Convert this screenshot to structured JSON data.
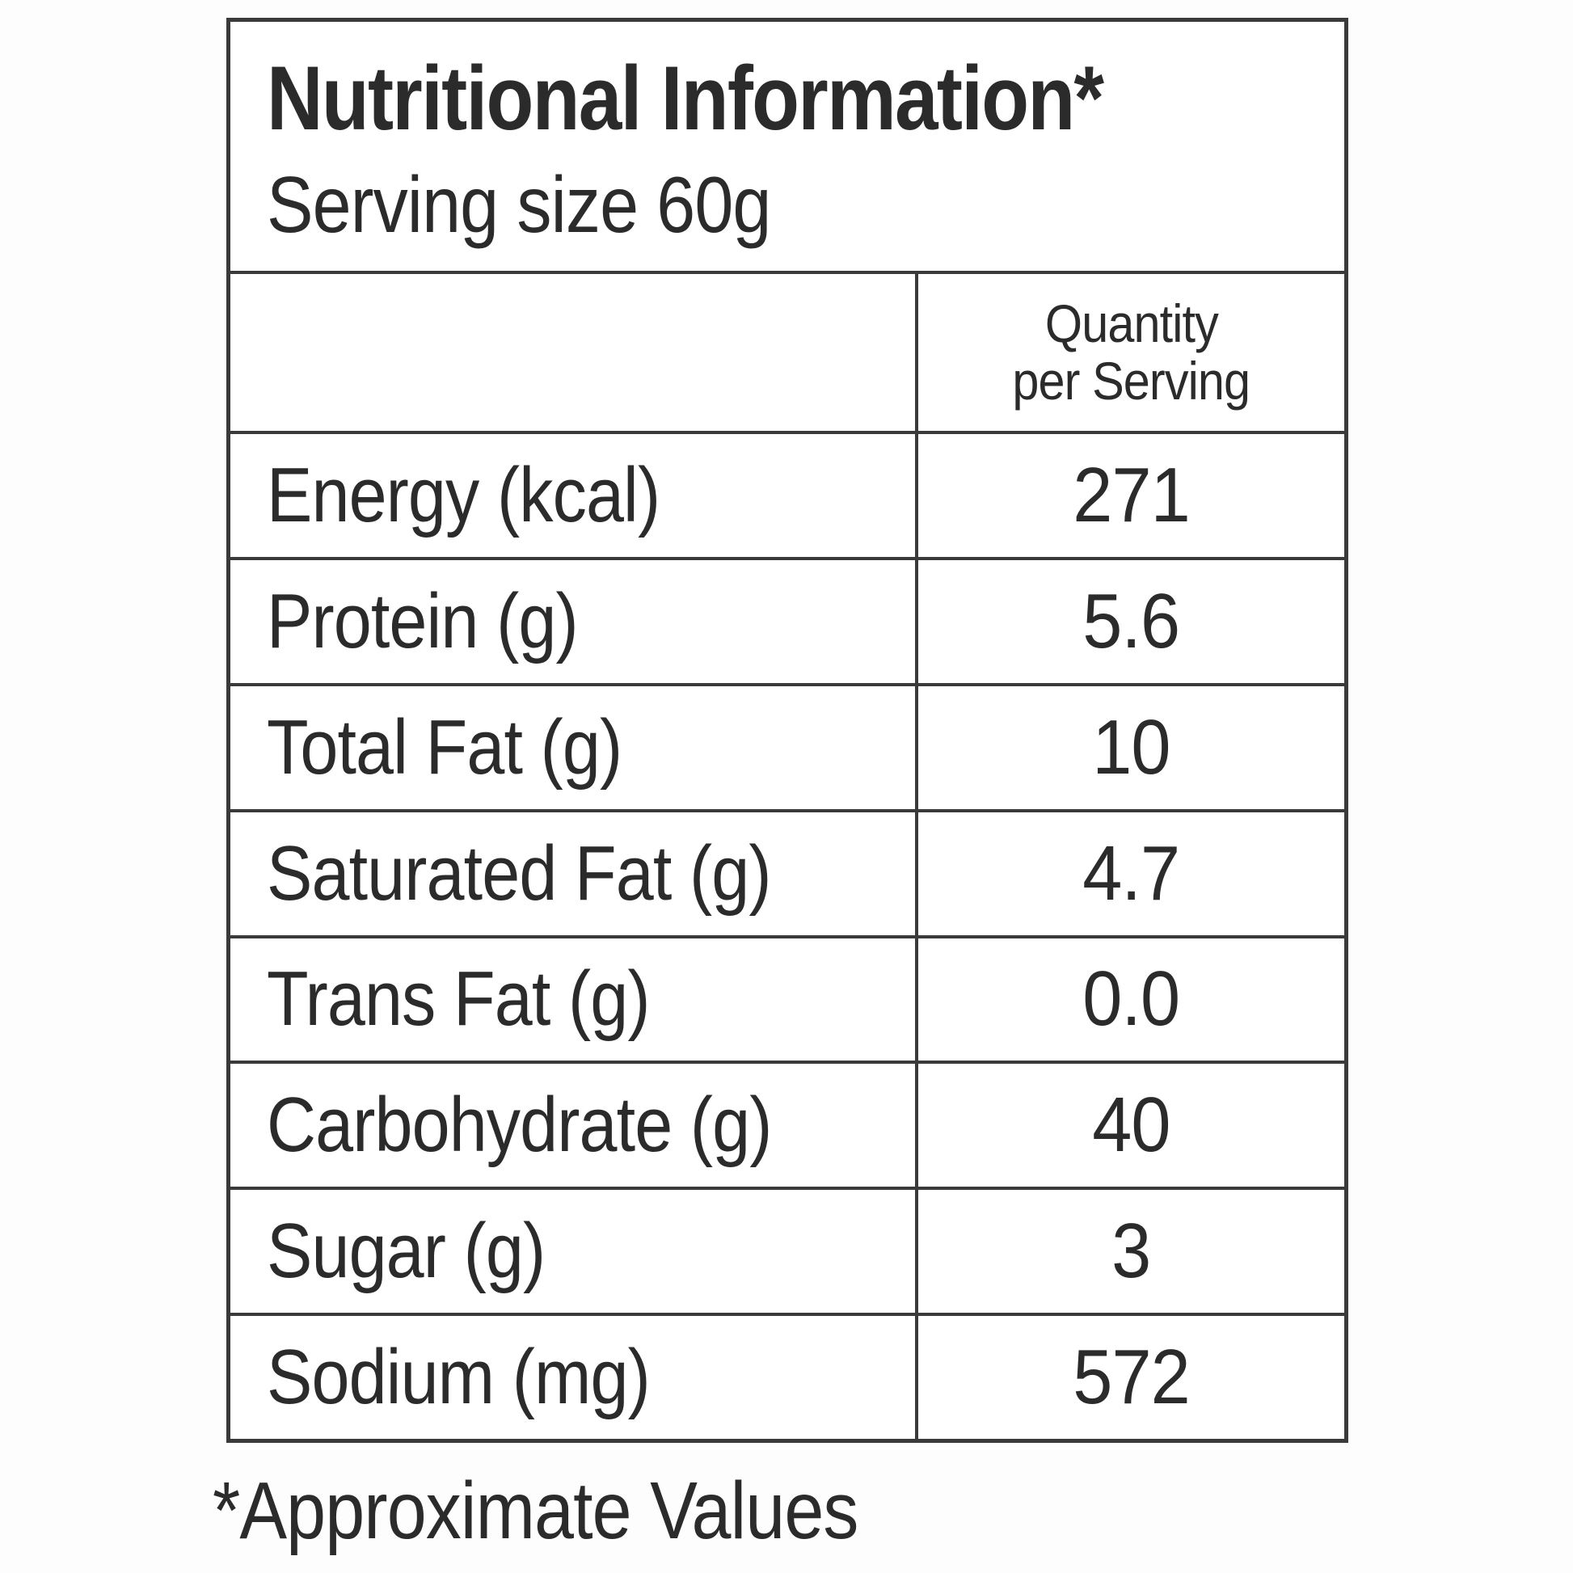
{
  "label": {
    "title": "Nutritional Information*",
    "serving_size": "Serving size 60g",
    "footnote": "*Approximate Values"
  },
  "table": {
    "value_header_line1": "Quantity",
    "value_header_line2": "per Serving",
    "rows": [
      {
        "label": "Energy (kcal)",
        "value": "271"
      },
      {
        "label": "Protein (g)",
        "value": "5.6"
      },
      {
        "label": "Total Fat (g)",
        "value": "10"
      },
      {
        "label": "Saturated Fat (g)",
        "value": "4.7"
      },
      {
        "label": "Trans Fat (g)",
        "value": "0.0"
      },
      {
        "label": "Carbohydrate (g)",
        "value": "40"
      },
      {
        "label": "Sugar (g)",
        "value": "3"
      },
      {
        "label": "Sodium (mg)",
        "value": "572"
      }
    ]
  },
  "colors": {
    "text": "#2b2b2b",
    "border": "#3a3a3a",
    "background": "#ffffff"
  }
}
